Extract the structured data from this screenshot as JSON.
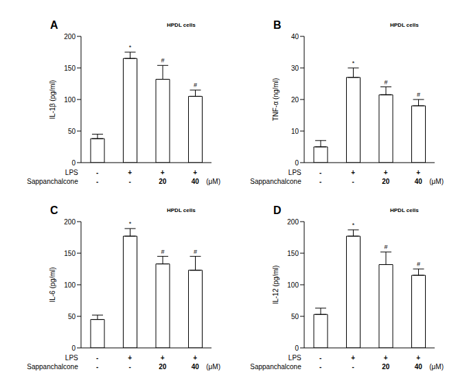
{
  "chart_data": [
    {
      "type": "bar",
      "title": "A",
      "subtitle": "HPDL cells",
      "y_label": "IL-1β (pg/ml)",
      "x_rows": [
        {
          "label": "LPS",
          "values": [
            "-",
            "+",
            "+",
            "+"
          ]
        },
        {
          "label": "Sappanchalcone",
          "values": [
            "-",
            "-",
            "20",
            "40"
          ],
          "unit": "(μM)"
        }
      ],
      "values": [
        38,
        165,
        132,
        105
      ],
      "errors": [
        7,
        10,
        22,
        10
      ],
      "annotations": [
        null,
        "*",
        "#",
        "#"
      ],
      "color": "#ffffff",
      "ylim": [
        0,
        200
      ],
      "yticks": [
        0,
        50,
        100,
        150,
        200
      ]
    },
    {
      "type": "bar",
      "title": "B",
      "subtitle": "HPDL cells",
      "y_label": "TNF-α (ng/ml)",
      "x_rows": [
        {
          "label": "LPS",
          "values": [
            "-",
            "+",
            "+",
            "+"
          ]
        },
        {
          "label": "Sappanchalcone",
          "values": [
            "-",
            "-",
            "20",
            "40"
          ],
          "unit": "(μM)"
        }
      ],
      "values": [
        5,
        27,
        21.5,
        18
      ],
      "errors": [
        2,
        3,
        2.5,
        2
      ],
      "annotations": [
        null,
        "*",
        "#",
        "#"
      ],
      "color": "#ffffff",
      "ylim": [
        0,
        40
      ],
      "yticks": [
        0,
        10,
        20,
        30,
        40
      ]
    },
    {
      "type": "bar",
      "title": "C",
      "subtitle": "HPDL cells",
      "y_label": "IL-6 (pg/ml)",
      "x_rows": [
        {
          "label": "LPS",
          "values": [
            "-",
            "+",
            "+",
            "+"
          ]
        },
        {
          "label": "Sappanchalcone",
          "values": [
            "-",
            "-",
            "20",
            "40"
          ],
          "unit": "(μM)"
        }
      ],
      "values": [
        45,
        177,
        133,
        123
      ],
      "errors": [
        7,
        12,
        12,
        22
      ],
      "annotations": [
        null,
        "*",
        "#",
        "#"
      ],
      "color": "#ffffff",
      "ylim": [
        0,
        200
      ],
      "yticks": [
        0,
        50,
        100,
        150,
        200
      ]
    },
    {
      "type": "bar",
      "title": "D",
      "subtitle": "HPDL cells",
      "y_label": "IL-12 (pg/ml)",
      "x_rows": [
        {
          "label": "LPS",
          "values": [
            "-",
            "+",
            "+",
            "+"
          ]
        },
        {
          "label": "Sappanchalcone",
          "values": [
            "-",
            "-",
            "20",
            "40"
          ],
          "unit": "(μM)"
        }
      ],
      "values": [
        53,
        177,
        132,
        115
      ],
      "errors": [
        10,
        10,
        20,
        10
      ],
      "annotations": [
        null,
        "*",
        "#",
        "#"
      ],
      "color": "#ffffff",
      "ylim": [
        0,
        200
      ],
      "yticks": [
        0,
        50,
        100,
        150,
        200
      ]
    }
  ]
}
